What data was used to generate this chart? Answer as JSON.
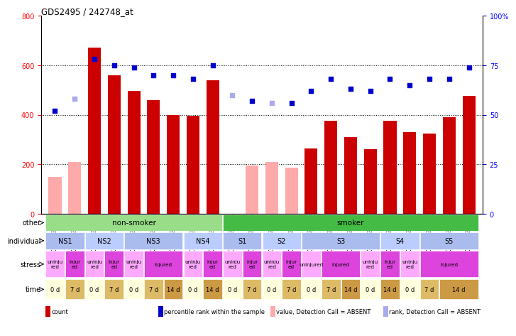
{
  "title": "GDS2495 / 242748_at",
  "samples": [
    "GSM122528",
    "GSM122531",
    "GSM122539",
    "GSM122540",
    "GSM122541",
    "GSM122542",
    "GSM122543",
    "GSM122544",
    "GSM122546",
    "GSM122527",
    "GSM122529",
    "GSM122530",
    "GSM122532",
    "GSM122533",
    "GSM122535",
    "GSM122536",
    "GSM122538",
    "GSM122534",
    "GSM122537",
    "GSM122545",
    "GSM122547",
    "GSM122548"
  ],
  "count_values": [
    150,
    210,
    670,
    560,
    495,
    460,
    400,
    395,
    540,
    null,
    195,
    210,
    185,
    265,
    375,
    310,
    260,
    375,
    330,
    325,
    390,
    475
  ],
  "count_absent": [
    true,
    true,
    false,
    false,
    false,
    false,
    false,
    false,
    false,
    null,
    true,
    true,
    true,
    false,
    false,
    false,
    false,
    false,
    false,
    false,
    false,
    false
  ],
  "rank_values": [
    52,
    58,
    78,
    75,
    74,
    70,
    70,
    68,
    75,
    60,
    57,
    56,
    56,
    62,
    68,
    63,
    62,
    68,
    65,
    68,
    68,
    74
  ],
  "rank_absent": [
    false,
    true,
    false,
    false,
    false,
    false,
    false,
    false,
    false,
    true,
    false,
    true,
    false,
    false,
    false,
    false,
    false,
    false,
    false,
    false,
    false,
    false
  ],
  "bar_color_present": "#cc0000",
  "bar_color_absent": "#ffaaaa",
  "rank_color_present": "#0000cc",
  "rank_color_absent": "#aaaaee",
  "other_row": {
    "label": "other",
    "groups": [
      {
        "text": "non-smoker",
        "start": 0,
        "end": 9,
        "color": "#99dd88"
      },
      {
        "text": "smoker",
        "start": 9,
        "end": 22,
        "color": "#44bb44"
      }
    ]
  },
  "individual_row": {
    "label": "individual",
    "groups": [
      {
        "text": "NS1",
        "start": 0,
        "end": 2,
        "color": "#aabbee"
      },
      {
        "text": "NS2",
        "start": 2,
        "end": 4,
        "color": "#bbccff"
      },
      {
        "text": "NS3",
        "start": 4,
        "end": 7,
        "color": "#aabbee"
      },
      {
        "text": "NS4",
        "start": 7,
        "end": 9,
        "color": "#bbccff"
      },
      {
        "text": "S1",
        "start": 9,
        "end": 11,
        "color": "#aabbee"
      },
      {
        "text": "S2",
        "start": 11,
        "end": 13,
        "color": "#bbccff"
      },
      {
        "text": "S3",
        "start": 13,
        "end": 17,
        "color": "#aabbee"
      },
      {
        "text": "S4",
        "start": 17,
        "end": 19,
        "color": "#bbccff"
      },
      {
        "text": "S5",
        "start": 19,
        "end": 22,
        "color": "#aabbee"
      }
    ]
  },
  "stress_row": {
    "label": "stress",
    "spans": [
      {
        "text": "uninju\nred",
        "start": 0,
        "end": 1,
        "color": "#ffaaff"
      },
      {
        "text": "injur\ned",
        "start": 1,
        "end": 2,
        "color": "#dd44dd"
      },
      {
        "text": "uninju\nred",
        "start": 2,
        "end": 3,
        "color": "#ffaaff"
      },
      {
        "text": "injur\ned",
        "start": 3,
        "end": 4,
        "color": "#dd44dd"
      },
      {
        "text": "uninju\nred",
        "start": 4,
        "end": 5,
        "color": "#ffaaff"
      },
      {
        "text": "injured",
        "start": 5,
        "end": 7,
        "color": "#dd44dd"
      },
      {
        "text": "uninju\nred",
        "start": 7,
        "end": 8,
        "color": "#ffaaff"
      },
      {
        "text": "injur\ned",
        "start": 8,
        "end": 9,
        "color": "#dd44dd"
      },
      {
        "text": "uninju\nred",
        "start": 9,
        "end": 10,
        "color": "#ffaaff"
      },
      {
        "text": "injur\ned",
        "start": 10,
        "end": 11,
        "color": "#dd44dd"
      },
      {
        "text": "uninju\nred",
        "start": 11,
        "end": 12,
        "color": "#ffaaff"
      },
      {
        "text": "injur\ned",
        "start": 12,
        "end": 13,
        "color": "#dd44dd"
      },
      {
        "text": "uninjured",
        "start": 13,
        "end": 14,
        "color": "#ffaaff"
      },
      {
        "text": "injured",
        "start": 14,
        "end": 16,
        "color": "#dd44dd"
      },
      {
        "text": "uninju\nred",
        "start": 16,
        "end": 17,
        "color": "#ffaaff"
      },
      {
        "text": "injur\ned",
        "start": 17,
        "end": 18,
        "color": "#dd44dd"
      },
      {
        "text": "uninju\nred",
        "start": 18,
        "end": 19,
        "color": "#ffaaff"
      },
      {
        "text": "injured",
        "start": 19,
        "end": 22,
        "color": "#dd44dd"
      }
    ]
  },
  "time_row": {
    "label": "time",
    "spans": [
      {
        "text": "0 d",
        "start": 0,
        "end": 1,
        "color": "#ffffdd"
      },
      {
        "text": "7 d",
        "start": 1,
        "end": 2,
        "color": "#ddbb66"
      },
      {
        "text": "0 d",
        "start": 2,
        "end": 3,
        "color": "#ffffdd"
      },
      {
        "text": "7 d",
        "start": 3,
        "end": 4,
        "color": "#ddbb66"
      },
      {
        "text": "0 d",
        "start": 4,
        "end": 5,
        "color": "#ffffdd"
      },
      {
        "text": "7 d",
        "start": 5,
        "end": 6,
        "color": "#ddbb66"
      },
      {
        "text": "14 d",
        "start": 6,
        "end": 7,
        "color": "#cc9944"
      },
      {
        "text": "0 d",
        "start": 7,
        "end": 8,
        "color": "#ffffdd"
      },
      {
        "text": "14 d",
        "start": 8,
        "end": 9,
        "color": "#cc9944"
      },
      {
        "text": "0 d",
        "start": 9,
        "end": 10,
        "color": "#ffffdd"
      },
      {
        "text": "7 d",
        "start": 10,
        "end": 11,
        "color": "#ddbb66"
      },
      {
        "text": "0 d",
        "start": 11,
        "end": 12,
        "color": "#ffffdd"
      },
      {
        "text": "7 d",
        "start": 12,
        "end": 13,
        "color": "#ddbb66"
      },
      {
        "text": "0 d",
        "start": 13,
        "end": 14,
        "color": "#ffffdd"
      },
      {
        "text": "7 d",
        "start": 14,
        "end": 15,
        "color": "#ddbb66"
      },
      {
        "text": "14 d",
        "start": 15,
        "end": 16,
        "color": "#cc9944"
      },
      {
        "text": "0 d",
        "start": 16,
        "end": 17,
        "color": "#ffffdd"
      },
      {
        "text": "14 d",
        "start": 17,
        "end": 18,
        "color": "#cc9944"
      },
      {
        "text": "0 d",
        "start": 18,
        "end": 19,
        "color": "#ffffdd"
      },
      {
        "text": "7 d",
        "start": 19,
        "end": 20,
        "color": "#ddbb66"
      },
      {
        "text": "14 d",
        "start": 20,
        "end": 22,
        "color": "#cc9944"
      }
    ]
  },
  "legend": [
    {
      "label": "count",
      "color": "#cc0000"
    },
    {
      "label": "percentile rank within the sample",
      "color": "#0000cc"
    },
    {
      "label": "value, Detection Call = ABSENT",
      "color": "#ffaaaa"
    },
    {
      "label": "rank, Detection Call = ABSENT",
      "color": "#aaaaee"
    }
  ]
}
